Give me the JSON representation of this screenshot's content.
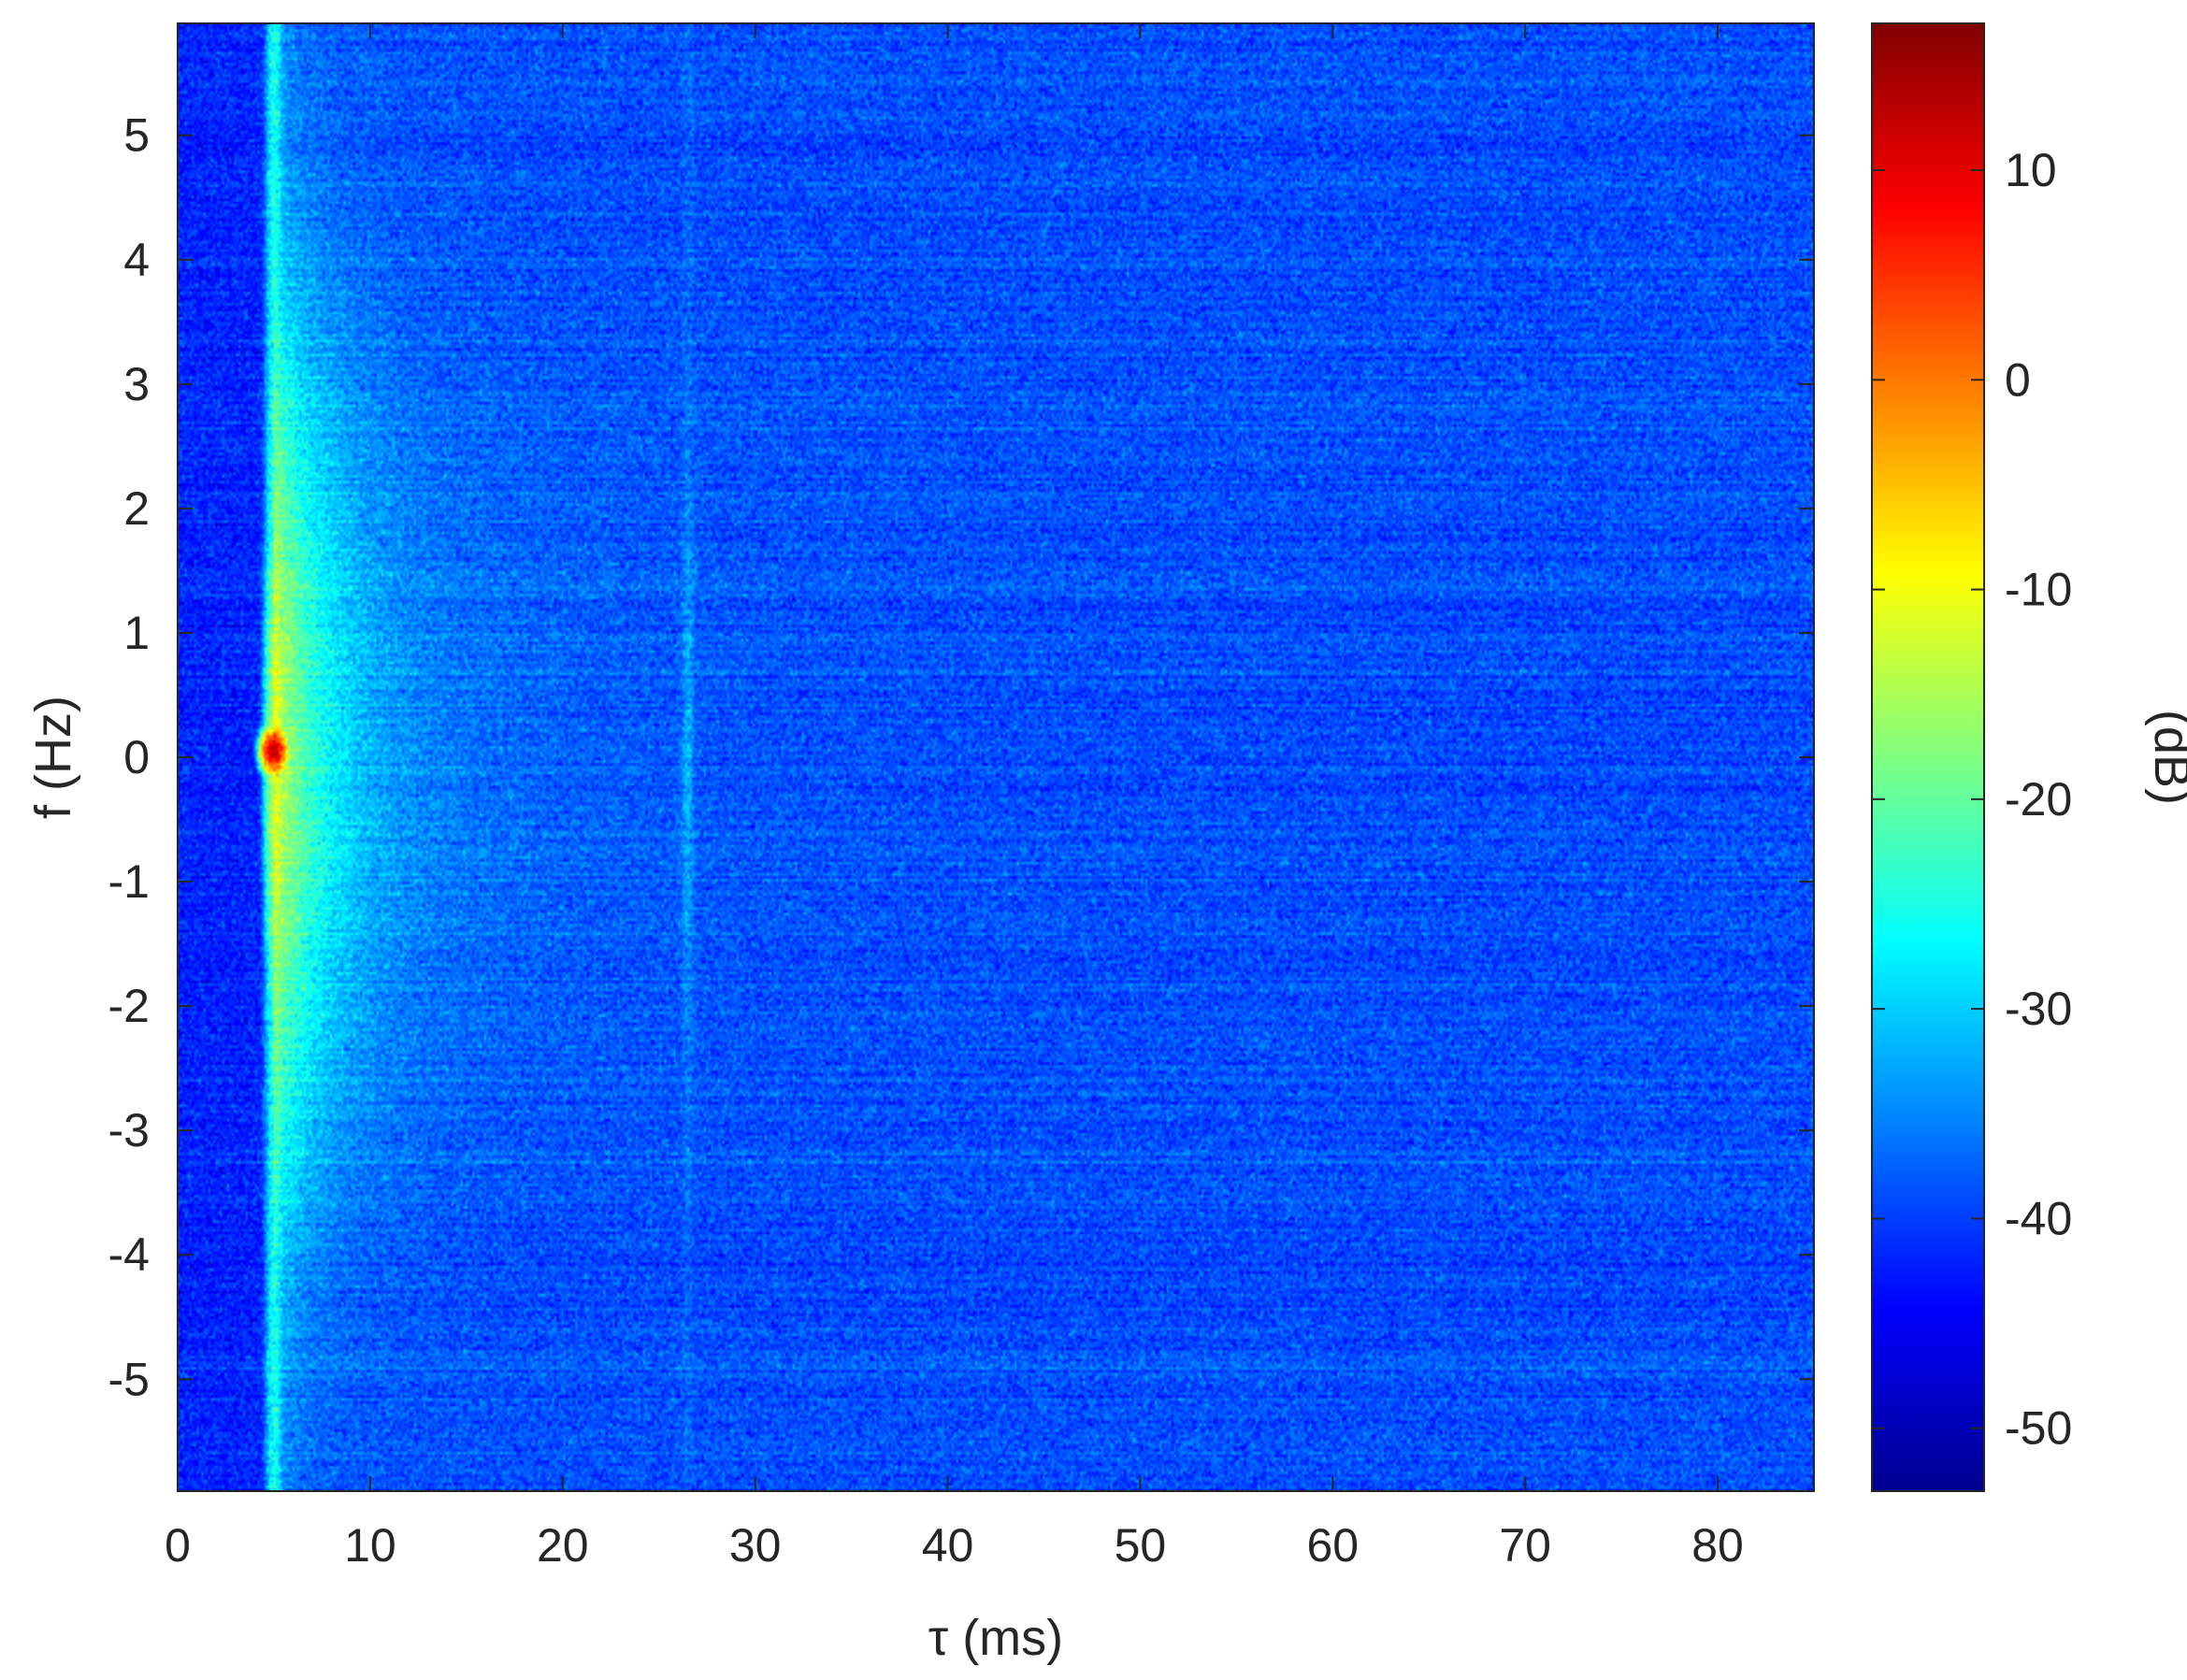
{
  "chart_data": {
    "type": "heatmap",
    "title": "",
    "xlabel": "τ (ms)",
    "ylabel": "f (Hz)",
    "colorbar_label": "(dB)",
    "colormap": "jet",
    "xlim": [
      0,
      85
    ],
    "ylim": [
      -5.9,
      5.9
    ],
    "clim": [
      -53,
      17
    ],
    "x_ticks": [
      0,
      10,
      20,
      30,
      40,
      50,
      60,
      70,
      80
    ],
    "y_ticks": [
      5,
      4,
      3,
      2,
      1,
      0,
      -1,
      -2,
      -3,
      -4,
      -5
    ],
    "colorbar_ticks": [
      10,
      0,
      -10,
      -20,
      -30,
      -40,
      -50
    ],
    "x_tick_labels": [
      "0",
      "10",
      "20",
      "30",
      "40",
      "50",
      "60",
      "70",
      "80"
    ],
    "y_tick_labels": [
      "5",
      "4",
      "3",
      "2",
      "1",
      "0",
      "-1",
      "-2",
      "-3",
      "-4",
      "-5"
    ],
    "colorbar_tick_labels": [
      "10",
      "0",
      "-10",
      "-20",
      "-30",
      "-40",
      "-50"
    ],
    "background_level_db": -42,
    "features": [
      {
        "description": "main delay line",
        "tau_ms": 5.0,
        "f_range_hz": [
          -5.9,
          5.9
        ],
        "peak_db": 12,
        "peak_f_hz": 0.05
      },
      {
        "description": "diffuse scattering tail",
        "tau_ms_range": [
          5,
          25
        ],
        "f_range_hz": [
          -3,
          3
        ],
        "level_db": -28
      },
      {
        "description": "weak secondary path",
        "tau_ms": 26.5,
        "f_range_hz": [
          -3,
          3
        ],
        "level_db": -32
      }
    ]
  },
  "colors": {
    "background": "#ffffff",
    "axis": "#262626",
    "jet_stops": [
      "#00008f",
      "#0000ff",
      "#0080ff",
      "#00ffff",
      "#80ff80",
      "#ffff00",
      "#ff8000",
      "#ff0000",
      "#800000"
    ]
  }
}
